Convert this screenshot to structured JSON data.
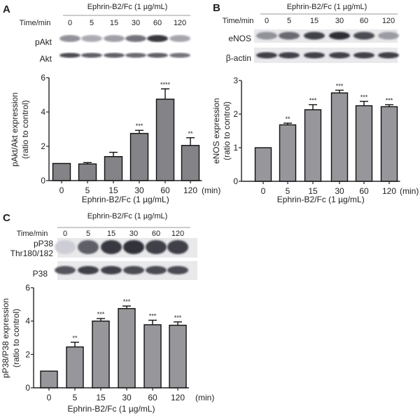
{
  "panels": [
    {
      "letter": "A",
      "treatment": "Ephrin-B2/Fc (1 µg/mL)",
      "time_label": "Time/min",
      "times": [
        "0",
        "5",
        "15",
        "30",
        "60",
        "120"
      ],
      "blot_rows": [
        "pAkt",
        "Akt"
      ]
    },
    {
      "letter": "B",
      "treatment": "Ephrin-B2/Fc (1 µg/mL)",
      "time_label": "Time/min",
      "times": [
        "0",
        "5",
        "15",
        "30",
        "60",
        "120"
      ],
      "blot_rows": [
        "eNOS",
        "β-actin"
      ]
    },
    {
      "letter": "C",
      "treatment": "Ephrin-B2/Fc (1 µg/mL)",
      "time_label": "Time/min",
      "times": [
        "0",
        "5",
        "15",
        "30",
        "60",
        "120"
      ],
      "blot_rows": [
        "pP38\nThr180/182",
        "P38"
      ]
    }
  ],
  "chart_data": [
    {
      "type": "bar",
      "panel": "A",
      "categories": [
        "0",
        "5",
        "15",
        "30",
        "60",
        "120"
      ],
      "values": [
        1.0,
        0.97,
        1.4,
        2.75,
        4.75,
        2.05
      ],
      "errors": [
        0.0,
        0.08,
        0.25,
        0.18,
        0.6,
        0.45
      ],
      "significance": [
        "",
        "",
        "",
        "***",
        "****",
        "**"
      ],
      "xlabel": "Ephrin-B2/Fc (1 µg/mL)",
      "xunit": "(min)",
      "ylabel": [
        "pAkt/Akt expression",
        "(ratio to control)"
      ],
      "ylim": [
        0,
        6
      ],
      "yticks": [
        "0",
        "2",
        "4",
        "6"
      ],
      "bar_color": "#838388"
    },
    {
      "type": "bar",
      "panel": "B",
      "categories": [
        "0",
        "5",
        "15",
        "30",
        "60",
        "120"
      ],
      "values": [
        1.0,
        1.68,
        2.13,
        2.63,
        2.25,
        2.22
      ],
      "errors": [
        0.0,
        0.05,
        0.15,
        0.08,
        0.13,
        0.06
      ],
      "significance": [
        "",
        "**",
        "***",
        "***",
        "***",
        "***"
      ],
      "xlabel": "Ephrin-B2/Fc (1 µg/mL)",
      "xunit": "(min)",
      "ylabel": [
        "eNOS expression",
        "(ratio to control)"
      ],
      "ylim": [
        0,
        3
      ],
      "yticks": [
        "0",
        "1",
        "2",
        "3"
      ],
      "bar_color": "#96969b"
    },
    {
      "type": "bar",
      "panel": "C",
      "categories": [
        "0",
        "5",
        "15",
        "30",
        "60",
        "120"
      ],
      "values": [
        1.0,
        2.45,
        4.0,
        4.75,
        3.78,
        3.75
      ],
      "errors": [
        0.0,
        0.28,
        0.15,
        0.15,
        0.27,
        0.2
      ],
      "significance": [
        "",
        "**",
        "***",
        "***",
        "***",
        "***"
      ],
      "xlabel": "Ephrin-B2/Fc (1 µg/mL)",
      "xunit": "(min)",
      "ylabel": [
        "pP38/P38 expression",
        "(ratio to control)"
      ],
      "ylim": [
        0,
        6
      ],
      "yticks": [
        "0",
        "2",
        "4",
        "6"
      ],
      "bar_color": "#96969b"
    }
  ]
}
